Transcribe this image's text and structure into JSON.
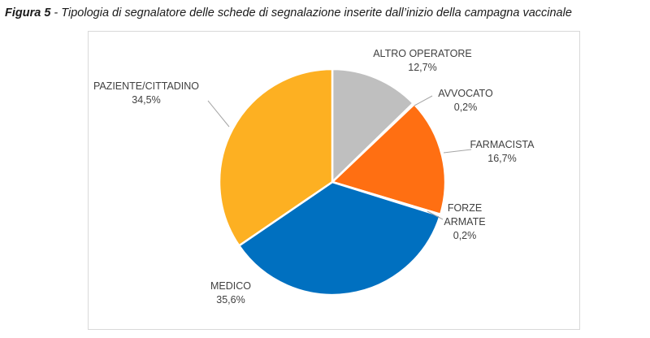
{
  "caption": {
    "label": "Figura 5",
    "text": " - Tipologia di segnalatore delle schede di segnalazione inserite dall’inizio della campagna vaccinale"
  },
  "chart_data": {
    "type": "pie",
    "title": "",
    "start": "12 o'clock, clockwise",
    "slices": [
      {
        "name": "ALTRO OPERATORE",
        "value": 12.7,
        "label": "12,7%",
        "color": "#BFBFBF"
      },
      {
        "name": "AVVOCATO",
        "value": 0.2,
        "label": "0,2%",
        "color": "#FF6600"
      },
      {
        "name": "FARMACISTA",
        "value": 16.7,
        "label": "16,7%",
        "color": "#FF6F12"
      },
      {
        "name": "FORZE ARMATE",
        "value": 0.2,
        "label": "0,2%",
        "color": "#7F7F7F"
      },
      {
        "name": "MEDICO",
        "value": 35.6,
        "label": "35,6%",
        "color": "#0070C0"
      },
      {
        "name": "PAZIENTE/CITTADINO",
        "value": 34.5,
        "label": "34,5%",
        "color": "#FDB022"
      }
    ]
  }
}
